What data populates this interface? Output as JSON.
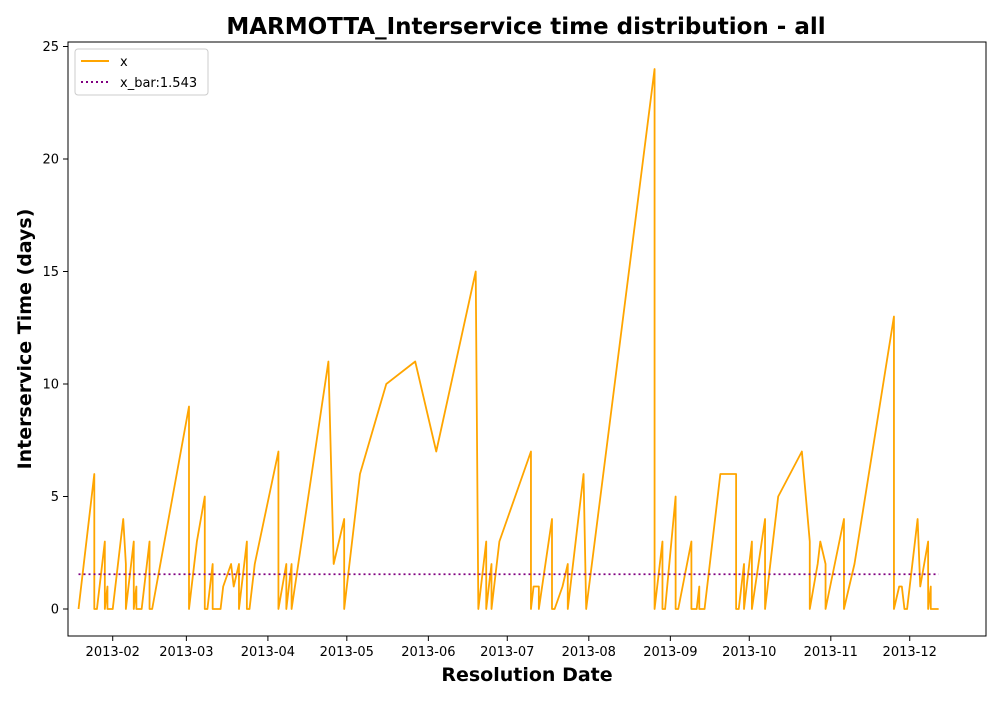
{
  "chart_data": {
    "type": "line",
    "title": "MARMOTTA_Interservice time distribution - all",
    "xlabel": "Resolution Date",
    "ylabel": "Interservice Time (days)",
    "x_ticks": [
      "2013-02",
      "2013-03",
      "2013-04",
      "2013-05",
      "2013-06",
      "2013-07",
      "2013-08",
      "2013-09",
      "2013-10",
      "2013-11",
      "2013-12"
    ],
    "y_ticks": [
      "0",
      "5",
      "10",
      "15",
      "20",
      "25"
    ],
    "xlim": [
      "2013-01-15",
      "2013-12-30"
    ],
    "ylim": [
      -1.2,
      25.2
    ],
    "grid": false,
    "legend_position": "top-left",
    "series": [
      {
        "name": "x",
        "color": "#ffa500",
        "style": "solid",
        "points": [
          [
            "2013-01-19",
            0
          ],
          [
            "2013-01-25",
            6
          ],
          [
            "2013-01-25",
            0
          ],
          [
            "2013-01-26",
            0
          ],
          [
            "2013-01-29",
            3
          ],
          [
            "2013-01-29",
            0
          ],
          [
            "2013-01-30",
            1
          ],
          [
            "2013-01-30",
            0
          ],
          [
            "2013-02-01",
            0
          ],
          [
            "2013-02-04",
            3
          ],
          [
            "2013-02-05",
            4
          ],
          [
            "2013-02-06",
            2
          ],
          [
            "2013-02-06",
            0
          ],
          [
            "2013-02-09",
            3
          ],
          [
            "2013-02-09",
            0
          ],
          [
            "2013-02-10",
            1
          ],
          [
            "2013-02-10",
            0
          ],
          [
            "2013-02-12",
            0
          ],
          [
            "2013-02-15",
            3
          ],
          [
            "2013-02-15",
            0
          ],
          [
            "2013-02-16",
            0
          ],
          [
            "2013-03-02",
            9
          ],
          [
            "2013-03-02",
            0
          ],
          [
            "2013-03-05",
            3
          ],
          [
            "2013-03-08",
            5
          ],
          [
            "2013-03-08",
            0
          ],
          [
            "2013-03-09",
            0
          ],
          [
            "2013-03-11",
            2
          ],
          [
            "2013-03-11",
            0
          ],
          [
            "2013-03-14",
            0
          ],
          [
            "2013-03-15",
            1
          ],
          [
            "2013-03-18",
            2
          ],
          [
            "2013-03-19",
            1
          ],
          [
            "2013-03-21",
            2
          ],
          [
            "2013-03-21",
            0
          ],
          [
            "2013-03-24",
            3
          ],
          [
            "2013-03-24",
            0
          ],
          [
            "2013-03-25",
            0
          ],
          [
            "2013-03-27",
            2
          ],
          [
            "2013-04-05",
            7
          ],
          [
            "2013-04-05",
            0
          ],
          [
            "2013-04-08",
            2
          ],
          [
            "2013-04-08",
            0
          ],
          [
            "2013-04-10",
            2
          ],
          [
            "2013-04-10",
            0
          ],
          [
            "2013-04-24",
            11
          ],
          [
            "2013-04-26",
            2
          ],
          [
            "2013-04-30",
            4
          ],
          [
            "2013-04-30",
            0
          ],
          [
            "2013-05-06",
            6
          ],
          [
            "2013-05-16",
            10
          ],
          [
            "2013-05-27",
            11
          ],
          [
            "2013-06-04",
            7
          ],
          [
            "2013-06-19",
            15
          ],
          [
            "2013-06-20",
            0
          ],
          [
            "2013-06-23",
            3
          ],
          [
            "2013-06-23",
            0
          ],
          [
            "2013-06-25",
            2
          ],
          [
            "2013-06-25",
            0
          ],
          [
            "2013-06-28",
            3
          ],
          [
            "2013-07-10",
            7
          ],
          [
            "2013-07-10",
            0
          ],
          [
            "2013-07-11",
            1
          ],
          [
            "2013-07-13",
            1
          ],
          [
            "2013-07-13",
            0
          ],
          [
            "2013-07-18",
            4
          ],
          [
            "2013-07-18",
            0
          ],
          [
            "2013-07-19",
            0
          ],
          [
            "2013-07-22",
            1
          ],
          [
            "2013-07-24",
            2
          ],
          [
            "2013-07-24",
            0
          ],
          [
            "2013-07-30",
            6
          ],
          [
            "2013-07-31",
            0
          ],
          [
            "2013-08-26",
            24
          ],
          [
            "2013-08-26",
            0
          ],
          [
            "2013-08-29",
            3
          ],
          [
            "2013-08-29",
            0
          ],
          [
            "2013-08-30",
            0
          ],
          [
            "2013-09-03",
            5
          ],
          [
            "2013-09-03",
            0
          ],
          [
            "2013-09-04",
            0
          ],
          [
            "2013-09-09",
            3
          ],
          [
            "2013-09-09",
            0
          ],
          [
            "2013-09-11",
            0
          ],
          [
            "2013-09-12",
            1
          ],
          [
            "2013-09-12",
            0
          ],
          [
            "2013-09-14",
            0
          ],
          [
            "2013-09-20",
            6
          ],
          [
            "2013-09-26",
            6
          ],
          [
            "2013-09-26",
            0
          ],
          [
            "2013-09-27",
            0
          ],
          [
            "2013-09-29",
            2
          ],
          [
            "2013-09-29",
            0
          ],
          [
            "2013-10-02",
            3
          ],
          [
            "2013-10-02",
            0
          ],
          [
            "2013-10-07",
            4
          ],
          [
            "2013-10-07",
            0
          ],
          [
            "2013-10-12",
            5
          ],
          [
            "2013-10-21",
            7
          ],
          [
            "2013-10-24",
            3
          ],
          [
            "2013-10-24",
            0
          ],
          [
            "2013-10-27",
            2
          ],
          [
            "2013-10-28",
            3
          ],
          [
            "2013-10-30",
            2
          ],
          [
            "2013-10-30",
            0
          ],
          [
            "2013-11-06",
            4
          ],
          [
            "2013-11-06",
            0
          ],
          [
            "2013-11-08",
            1
          ],
          [
            "2013-11-10",
            2
          ],
          [
            "2013-11-25",
            13
          ],
          [
            "2013-11-25",
            0
          ],
          [
            "2013-11-27",
            1
          ],
          [
            "2013-11-28",
            1
          ],
          [
            "2013-11-29",
            0
          ],
          [
            "2013-11-30",
            0
          ],
          [
            "2013-12-02",
            2
          ],
          [
            "2013-12-04",
            4
          ],
          [
            "2013-12-05",
            1
          ],
          [
            "2013-12-08",
            3
          ],
          [
            "2013-12-08",
            0
          ],
          [
            "2013-12-09",
            1
          ],
          [
            "2013-12-09",
            0
          ],
          [
            "2013-12-12",
            0
          ]
        ]
      },
      {
        "name": "x_bar:1.543",
        "color": "#800080",
        "style": "dotted",
        "value": 1.543,
        "x_range": [
          "2013-01-19",
          "2013-12-12"
        ]
      }
    ]
  }
}
